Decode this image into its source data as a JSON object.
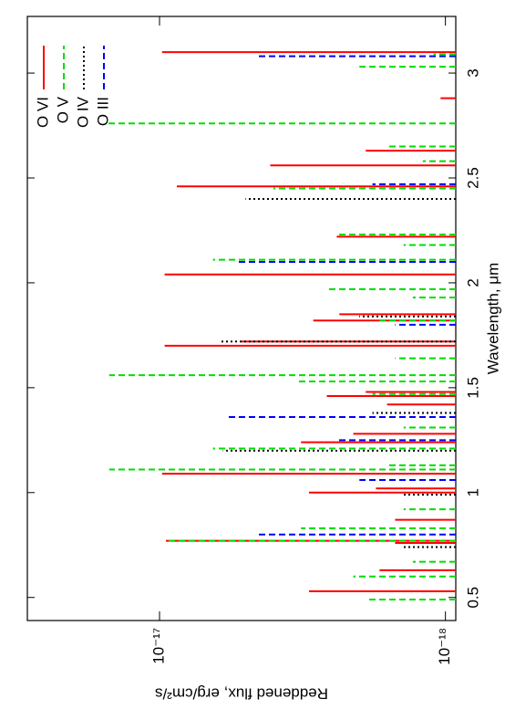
{
  "chart_data": {
    "type": "spectral-lines",
    "xlabel": "Wavelength, μm",
    "ylabel": "Reddened flux, erg/cm²/s",
    "xlim": [
      0.39,
      3.27
    ],
    "xticks": [
      0.5,
      1,
      1.5,
      2,
      2.5,
      3
    ],
    "ylim": [
      9.2e-19,
      2.9e-17
    ],
    "log_y": true,
    "yticks": [
      {
        "value": 1e-18,
        "label": "10⁻¹⁸"
      },
      {
        "value": 1e-17,
        "label": "10⁻¹⁷"
      }
    ],
    "legend": "upper right",
    "series": [
      {
        "name": "O VI",
        "color": "#ff0000",
        "dash": "solid",
        "x": [
          0.53,
          0.63,
          0.76,
          0.77,
          0.87,
          1.0,
          1.02,
          1.09,
          1.24,
          1.28,
          1.42,
          1.46,
          1.48,
          1.7,
          1.72,
          1.82,
          1.85,
          2.04,
          2.22,
          2.46,
          2.56,
          2.63,
          2.88,
          3.1
        ],
        "values": [
          3e-18,
          1.7e-18,
          1.5e-18,
          9.5e-18,
          1.5e-18,
          3e-18,
          1.75e-18,
          9.8e-18,
          3.2e-18,
          2.1e-18,
          1.6e-18,
          2.6e-18,
          1.9e-18,
          9.6e-18,
          5.2e-18,
          2.9e-18,
          2.35e-18,
          9.6e-18,
          2.4e-18,
          8.7e-18,
          4.1e-18,
          1.9e-18,
          1.04e-18,
          9.8e-18
        ]
      },
      {
        "name": "O V",
        "color": "#00dd00",
        "dash": "dashed",
        "x": [
          0.49,
          0.6,
          0.67,
          0.77,
          0.83,
          0.92,
          1.11,
          1.13,
          1.21,
          1.31,
          1.47,
          1.53,
          1.56,
          1.64,
          1.82,
          1.93,
          1.97,
          2.11,
          2.18,
          2.23,
          2.45,
          2.58,
          2.65,
          2.76,
          3.03,
          3.09
        ],
        "values": [
          1.9e-18,
          2.1e-18,
          1.3e-18,
          9.5e-18,
          3.2e-18,
          1.4e-18,
          1.5e-17,
          1.6e-18,
          6.5e-18,
          1.4e-18,
          1.8e-18,
          3.3e-18,
          1.5e-17,
          1.5e-18,
          1.7e-18,
          1.3e-18,
          2.6e-18,
          6.5e-18,
          1.4e-18,
          2.4e-18,
          4e-18,
          1.2e-18,
          1.6e-18,
          1.55e-17,
          2e-18,
          1.1e-18
        ]
      },
      {
        "name": "O IV",
        "color": "#000000",
        "dash": "dotted",
        "x": [
          0.74,
          0.99,
          1.2,
          1.38,
          1.72,
          1.84,
          2.4
        ],
        "values": [
          1.4e-18,
          1.4e-18,
          6e-18,
          1.8e-18,
          6.2e-18,
          2e-18,
          5e-18
        ]
      },
      {
        "name": "O III",
        "color": "#0000ff",
        "dash": "dashed",
        "x": [
          0.8,
          1.06,
          1.25,
          1.36,
          1.8,
          2.1,
          2.47,
          3.08
        ],
        "values": [
          4.6e-18,
          2e-18,
          2.4e-18,
          5.8e-18,
          1.5e-18,
          5.3e-18,
          1.8e-18,
          4.5e-18
        ]
      }
    ]
  }
}
